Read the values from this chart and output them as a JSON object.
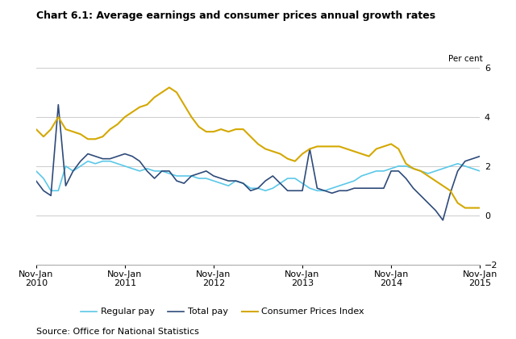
{
  "title": "Chart 6.1: Average earnings and consumer prices annual growth rates",
  "source": "Source: Office for National Statistics",
  "ylabel": "Per cent",
  "ylim": [
    -2,
    6
  ],
  "yticks": [
    -2,
    0,
    2,
    4,
    6
  ],
  "background_color": "#ffffff",
  "grid_color": "#cccccc",
  "legend_labels": [
    "Regular pay",
    "Total pay",
    "Consumer Prices Index"
  ],
  "legend_colors": [
    "#5bc8e8",
    "#2e4b7a",
    "#d4a800"
  ],
  "x_tick_labels": [
    "Nov-Jan\n2010",
    "Nov-Jan\n2011",
    "Nov-Jan\n2012",
    "Nov-Jan\n2013",
    "Nov-Jan\n2014",
    "Nov-Jan\n2015"
  ],
  "regular_pay": [
    1.8,
    1.5,
    1.0,
    1.0,
    2.0,
    1.8,
    2.0,
    2.2,
    2.1,
    2.2,
    2.2,
    2.1,
    2.0,
    1.9,
    1.8,
    1.9,
    1.8,
    1.8,
    1.7,
    1.6,
    1.6,
    1.6,
    1.5,
    1.5,
    1.4,
    1.3,
    1.2,
    1.4,
    1.3,
    1.1,
    1.1,
    1.0,
    1.1,
    1.3,
    1.5,
    1.5,
    1.3,
    1.1,
    1.0,
    1.0,
    1.1,
    1.2,
    1.3,
    1.4,
    1.6,
    1.7,
    1.8,
    1.8,
    1.9,
    2.0,
    2.0,
    1.9,
    1.8,
    1.7,
    1.8,
    1.9,
    2.0,
    2.1,
    2.0,
    1.9,
    1.8
  ],
  "total_pay": [
    1.4,
    1.0,
    0.8,
    4.5,
    1.2,
    1.8,
    2.2,
    2.5,
    2.4,
    2.3,
    2.3,
    2.4,
    2.5,
    2.4,
    2.2,
    1.8,
    1.5,
    1.8,
    1.8,
    1.4,
    1.3,
    1.6,
    1.7,
    1.8,
    1.6,
    1.5,
    1.4,
    1.4,
    1.3,
    1.0,
    1.1,
    1.4,
    1.6,
    1.3,
    1.0,
    1.0,
    1.0,
    2.7,
    1.1,
    1.0,
    0.9,
    1.0,
    1.0,
    1.1,
    1.1,
    1.1,
    1.1,
    1.1,
    1.8,
    1.8,
    1.5,
    1.1,
    0.8,
    0.5,
    0.2,
    -0.2,
    0.9,
    1.8,
    2.2,
    2.3,
    2.4
  ],
  "cpi": [
    3.5,
    3.2,
    3.5,
    4.0,
    3.5,
    3.4,
    3.3,
    3.1,
    3.1,
    3.2,
    3.5,
    3.7,
    4.0,
    4.2,
    4.4,
    4.5,
    4.8,
    5.0,
    5.2,
    5.0,
    4.5,
    4.0,
    3.6,
    3.4,
    3.4,
    3.5,
    3.4,
    3.5,
    3.5,
    3.2,
    2.9,
    2.7,
    2.6,
    2.5,
    2.3,
    2.2,
    2.5,
    2.7,
    2.8,
    2.8,
    2.8,
    2.8,
    2.7,
    2.6,
    2.5,
    2.4,
    2.7,
    2.8,
    2.9,
    2.7,
    2.1,
    1.9,
    1.8,
    1.6,
    1.4,
    1.2,
    1.0,
    0.5,
    0.3,
    0.3,
    0.3
  ]
}
